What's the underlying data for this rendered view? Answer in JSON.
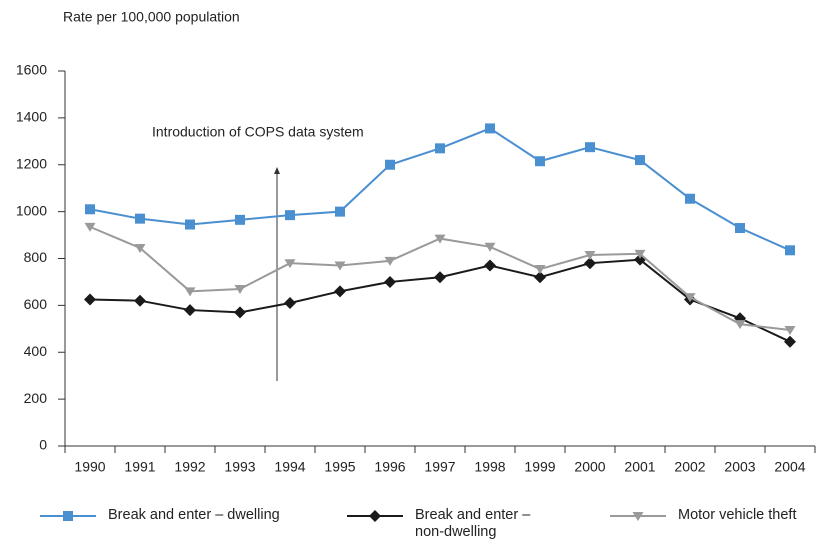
{
  "chart_data": {
    "type": "line",
    "y_label": "Rate per 100,000 population",
    "annotation": "Introduction of COPS data system",
    "categories": [
      "1990",
      "1991",
      "1992",
      "1993",
      "1994",
      "1995",
      "1996",
      "1997",
      "1998",
      "1999",
      "2000",
      "2001",
      "2002",
      "2003",
      "2004"
    ],
    "series": [
      {
        "name": "Break and enter – dwelling",
        "color": "#4a8fd0",
        "marker": "square",
        "values": [
          1010,
          970,
          945,
          965,
          985,
          1000,
          1200,
          1270,
          1355,
          1215,
          1275,
          1220,
          1055,
          930,
          835
        ]
      },
      {
        "name": "Break and enter – non-dwelling",
        "color": "#1a1a1a",
        "marker": "diamond",
        "values": [
          625,
          620,
          580,
          570,
          610,
          660,
          700,
          720,
          770,
          720,
          780,
          795,
          625,
          545,
          445
        ]
      },
      {
        "name": "Motor vehicle theft",
        "color": "#9a9a9a",
        "marker": "triangle-down",
        "values": [
          935,
          845,
          660,
          670,
          780,
          770,
          790,
          885,
          850,
          755,
          815,
          820,
          635,
          520,
          495
        ]
      }
    ],
    "ylim": [
      0,
      1600
    ],
    "yticks": [
      0,
      200,
      400,
      600,
      800,
      1000,
      1200,
      1400,
      1600
    ]
  }
}
